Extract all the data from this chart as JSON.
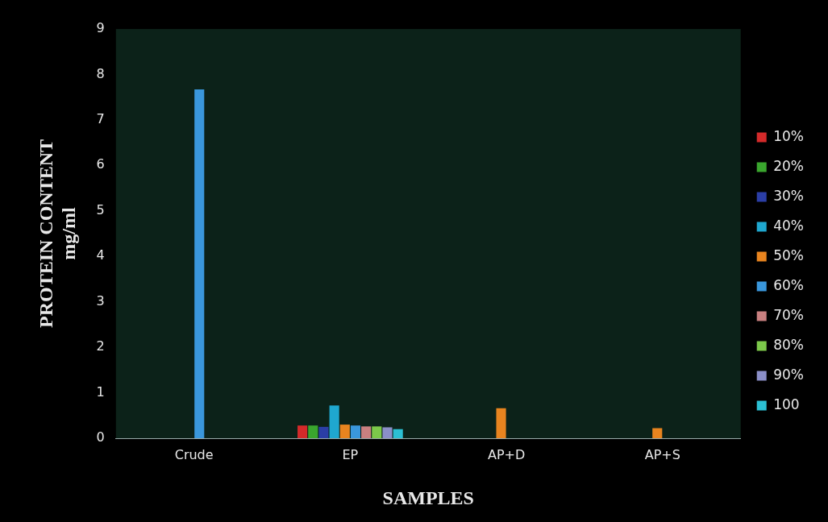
{
  "chart_data": {
    "type": "bar",
    "xlabel": "SAMPLES",
    "ylabel": "PROTEIN CONTENT\nmg/ml",
    "categories": [
      "Crude",
      "EP",
      "AP+D",
      "AP+S"
    ],
    "series": [
      {
        "name": "10%",
        "color": "#d42a2a",
        "values": [
          null,
          0.28,
          null,
          null
        ]
      },
      {
        "name": "20%",
        "color": "#3aa62e",
        "values": [
          null,
          0.28,
          null,
          null
        ]
      },
      {
        "name": "30%",
        "color": "#2b3ea6",
        "values": [
          null,
          0.25,
          null,
          null
        ]
      },
      {
        "name": "40%",
        "color": "#1fa7cf",
        "values": [
          null,
          0.72,
          null,
          null
        ]
      },
      {
        "name": "50%",
        "color": "#e8841f",
        "values": [
          null,
          0.3,
          0.66,
          0.22
        ]
      },
      {
        "name": "60%",
        "color": "#3a97dc",
        "values": [
          7.67,
          0.28,
          null,
          null
        ]
      },
      {
        "name": "70%",
        "color": "#c98080",
        "values": [
          null,
          0.26,
          null,
          null
        ]
      },
      {
        "name": "80%",
        "color": "#7cc84a",
        "values": [
          null,
          0.26,
          null,
          null
        ]
      },
      {
        "name": "90%",
        "color": "#8b8fc8",
        "values": [
          null,
          0.24,
          null,
          null
        ]
      },
      {
        "name": "100",
        "color": "#2cc0d4",
        "values": [
          null,
          0.2,
          null,
          null
        ]
      }
    ],
    "ylim": [
      0,
      9
    ],
    "yticks": [
      0,
      1,
      2,
      3,
      4,
      5,
      6,
      7,
      8,
      9
    ],
    "grid": false,
    "legend": "right"
  }
}
